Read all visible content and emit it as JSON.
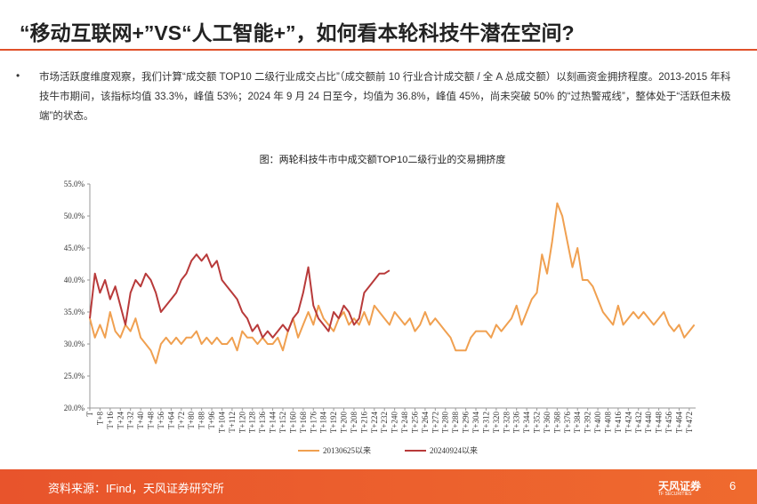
{
  "header": {
    "title": "“移动互联网+”VS“人工智能+”，如何看本轮科技牛潜在空间?"
  },
  "body": {
    "bullet": "•",
    "text": "市场活跃度维度观察，我们计算“成交额 TOP10 二级行业成交占比”（成交额前 10 行业合计成交额 / 全 A 总成交额）以刻画资金拥挤程度。2013-2015 年科技牛市期间，该指标均值 33.3%，峰值 53%；2024 年 9 月 24 日至今，均值为 36.8%，峰值 45%，尚未突破 50% 的“过热警戒线”，整体处于“活跃但未极端”的状态。"
  },
  "footer": {
    "source": "资料来源：IFind，天风证券研究所",
    "logo": "天风证券",
    "logo_sub": "TF SECURITIES",
    "page": "6"
  },
  "chart_data": {
    "type": "line",
    "title": "图：两轮科技牛市中成交额TOP10二级行业的交易拥挤度",
    "x": [
      0,
      4,
      8,
      12,
      16,
      20,
      24,
      28,
      32,
      36,
      40,
      44,
      48,
      52,
      56,
      60,
      64,
      68,
      72,
      76,
      80,
      84,
      88,
      92,
      96,
      100,
      104,
      108,
      112,
      116,
      120,
      124,
      128,
      132,
      136,
      140,
      144,
      148,
      152,
      156,
      160,
      164,
      168,
      172,
      176,
      180,
      184,
      188,
      192,
      196,
      200,
      204,
      208,
      212,
      216,
      220,
      224,
      228,
      232,
      236,
      240,
      244,
      248,
      252,
      256,
      260,
      264,
      268,
      272,
      276,
      280,
      284,
      288,
      292,
      296,
      300,
      304,
      308,
      312,
      316,
      320,
      324,
      328,
      332,
      336,
      340,
      344,
      348,
      352,
      356,
      360,
      364,
      368,
      372,
      376,
      380,
      384,
      388,
      392,
      396,
      400,
      404,
      408,
      412,
      416,
      420,
      424,
      428,
      432,
      436,
      440,
      444,
      448,
      452,
      456,
      460,
      464,
      468,
      472,
      476
    ],
    "series": [
      {
        "name": "20130625以来",
        "color": "#f0a050",
        "values": [
          34,
          31,
          33,
          31,
          35,
          32,
          31,
          33,
          32,
          34,
          31,
          30,
          29,
          27,
          30,
          31,
          30,
          31,
          30,
          31,
          31,
          32,
          30,
          31,
          30,
          31,
          30,
          30,
          31,
          29,
          32,
          31,
          31,
          30,
          31,
          30,
          30,
          31,
          29,
          32,
          34,
          31,
          33,
          35,
          33,
          36,
          34,
          33,
          32,
          34,
          35,
          33,
          34,
          33,
          35,
          33,
          36,
          35,
          34,
          33,
          35,
          34,
          33,
          34,
          32,
          33,
          35,
          33,
          34,
          33,
          32,
          31,
          29,
          29,
          29,
          31,
          32,
          32,
          32,
          31,
          33,
          32,
          33,
          34,
          36,
          33,
          35,
          37,
          38,
          44,
          41,
          46,
          52,
          50,
          46,
          42,
          45,
          40,
          40,
          39,
          37,
          35,
          34,
          33,
          36,
          33,
          34,
          35,
          34,
          35,
          34,
          33,
          34,
          35,
          33,
          32,
          33,
          31,
          32,
          33
        ]
      },
      {
        "name": "20240924以来",
        "color": "#b83a3a",
        "values": [
          34,
          41,
          38,
          40,
          37,
          39,
          36,
          33,
          38,
          40,
          39,
          41,
          40,
          38,
          35,
          36,
          37,
          38,
          40,
          41,
          43,
          44,
          43,
          44,
          42,
          43,
          40,
          39,
          38,
          37,
          35,
          34,
          32,
          33,
          31,
          32,
          31,
          32,
          33,
          32,
          34,
          35,
          38,
          42,
          36,
          34,
          33,
          32,
          35,
          34,
          36,
          35,
          33,
          34,
          38,
          39,
          40,
          41,
          41,
          41.5,
          null,
          null,
          null,
          null,
          null,
          null,
          null,
          null,
          null,
          null,
          null,
          null,
          null,
          null,
          null,
          null,
          null,
          null,
          null,
          null,
          null,
          null,
          null,
          null,
          null,
          null,
          null,
          null,
          null,
          null,
          null,
          null,
          null,
          null,
          null,
          null,
          null,
          null,
          null,
          null,
          null,
          null,
          null,
          null,
          null,
          null,
          null,
          null,
          null,
          null,
          null,
          null,
          null,
          null,
          null,
          null,
          null,
          null,
          null,
          null
        ]
      }
    ],
    "xlim": [
      0,
      477
    ],
    "xticks": [
      {
        "value": 0,
        "label": "T"
      },
      {
        "value": 8,
        "label": "T+8"
      },
      {
        "value": 16,
        "label": "T+16"
      },
      {
        "value": 24,
        "label": "T+24"
      },
      {
        "value": 32,
        "label": "T+32"
      },
      {
        "value": 40,
        "label": "T+40"
      },
      {
        "value": 48,
        "label": "T+48"
      },
      {
        "value": 56,
        "label": "T+56"
      },
      {
        "value": 64,
        "label": "T+64"
      },
      {
        "value": 72,
        "label": "T+72"
      },
      {
        "value": 80,
        "label": "T+80"
      },
      {
        "value": 88,
        "label": "T+88"
      },
      {
        "value": 96,
        "label": "T+96"
      },
      {
        "value": 104,
        "label": "T+104"
      },
      {
        "value": 112,
        "label": "T+112"
      },
      {
        "value": 120,
        "label": "T+120"
      },
      {
        "value": 128,
        "label": "T+128"
      },
      {
        "value": 136,
        "label": "T+136"
      },
      {
        "value": 144,
        "label": "T+144"
      },
      {
        "value": 152,
        "label": "T+152"
      },
      {
        "value": 160,
        "label": "T+160"
      },
      {
        "value": 168,
        "label": "T+168"
      },
      {
        "value": 176,
        "label": "T+176"
      },
      {
        "value": 184,
        "label": "T+184"
      },
      {
        "value": 192,
        "label": "T+192"
      },
      {
        "value": 200,
        "label": "T+200"
      },
      {
        "value": 208,
        "label": "T+208"
      },
      {
        "value": 216,
        "label": "T+216"
      },
      {
        "value": 224,
        "label": "T+224"
      },
      {
        "value": 232,
        "label": "T+232"
      },
      {
        "value": 240,
        "label": "T+240"
      },
      {
        "value": 248,
        "label": "T+248"
      },
      {
        "value": 256,
        "label": "T+256"
      },
      {
        "value": 264,
        "label": "T+264"
      },
      {
        "value": 272,
        "label": "T+272"
      },
      {
        "value": 280,
        "label": "T+280"
      },
      {
        "value": 288,
        "label": "T+288"
      },
      {
        "value": 296,
        "label": "T+296"
      },
      {
        "value": 304,
        "label": "T+304"
      },
      {
        "value": 312,
        "label": "T+312"
      },
      {
        "value": 320,
        "label": "T+320"
      },
      {
        "value": 328,
        "label": "T+328"
      },
      {
        "value": 336,
        "label": "T+336"
      },
      {
        "value": 344,
        "label": "T+344"
      },
      {
        "value": 352,
        "label": "T+352"
      },
      {
        "value": 360,
        "label": "T+360"
      },
      {
        "value": 368,
        "label": "T+368"
      },
      {
        "value": 376,
        "label": "T+376"
      },
      {
        "value": 384,
        "label": "T+384"
      },
      {
        "value": 392,
        "label": "T+392"
      },
      {
        "value": 400,
        "label": "T+400"
      },
      {
        "value": 408,
        "label": "T+408"
      },
      {
        "value": 416,
        "label": "T+416"
      },
      {
        "value": 424,
        "label": "T+424"
      },
      {
        "value": 432,
        "label": "T+432"
      },
      {
        "value": 440,
        "label": "T+440"
      },
      {
        "value": 448,
        "label": "T+448"
      },
      {
        "value": 456,
        "label": "T+456"
      },
      {
        "value": 464,
        "label": "T+464"
      },
      {
        "value": 472,
        "label": "T+472"
      }
    ],
    "ylim": [
      20,
      55
    ],
    "yticks": [
      {
        "value": 20,
        "label": "20.0%"
      },
      {
        "value": 25,
        "label": "25.0%"
      },
      {
        "value": 30,
        "label": "30.0%"
      },
      {
        "value": 35,
        "label": "35.0%"
      },
      {
        "value": 40,
        "label": "40.0%"
      },
      {
        "value": 45,
        "label": "45.0%"
      },
      {
        "value": 50,
        "label": "50.0%"
      },
      {
        "value": 55,
        "label": "55.0%"
      }
    ],
    "grid": false
  }
}
